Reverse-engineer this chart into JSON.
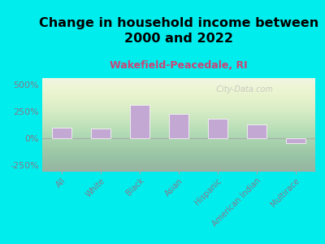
{
  "title": "Change in household income between\n2000 and 2022",
  "subtitle": "Wakefield-Peacedale, RI",
  "categories": [
    "All",
    "White",
    "Black",
    "Asian",
    "Hispanic",
    "American Indian",
    "Multirace"
  ],
  "values": [
    100,
    90,
    310,
    230,
    185,
    130,
    -40
  ],
  "bar_color": "#c4a8d4",
  "bar_edgecolor": "#ffffff",
  "title_fontsize": 11.5,
  "subtitle_fontsize": 9,
  "subtitle_color": "#cc4477",
  "tick_color": "#887788",
  "background_outer": "#00eded",
  "ylim": [
    -300,
    560
  ],
  "yticks": [
    -250,
    0,
    250,
    500
  ],
  "ytick_labels": [
    "-250%",
    "0%",
    "250%",
    "500%"
  ],
  "watermark": "  City-Data.com"
}
